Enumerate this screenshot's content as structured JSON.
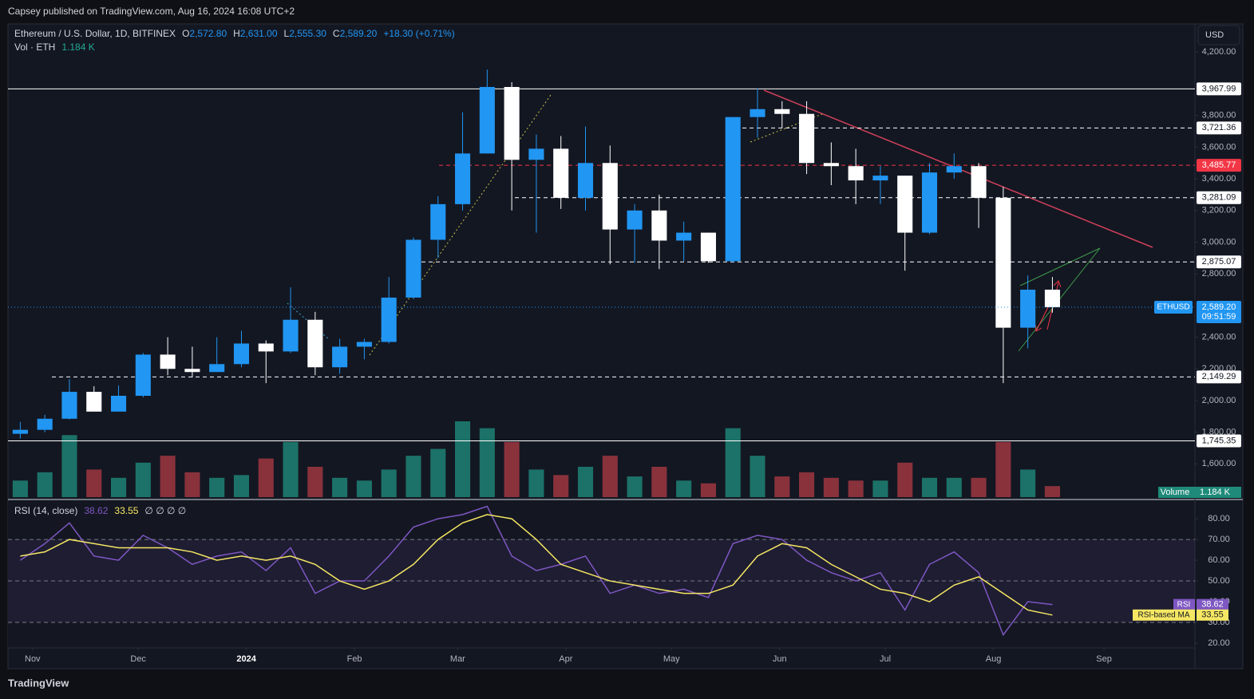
{
  "header": {
    "publisher": "Capsey published on TradingView.com, Aug 16, 2024 16:08 UTC+2",
    "currency": "USD",
    "footer": "TradingView"
  },
  "legend": {
    "symbol": "Ethereum / U.S. Dollar, 1D, BITFINEX",
    "ohlc": [
      {
        "key": "O",
        "value": "2,572.80"
      },
      {
        "key": "H",
        "value": "2,631.00"
      },
      {
        "key": "L",
        "value": "2,555.30"
      },
      {
        "key": "C",
        "value": "2,589.20"
      }
    ],
    "change": "+18.30 (+0.71%)",
    "volume_title": "Vol · ETH",
    "volume_value": "1.184 K"
  },
  "chart_data": {
    "type": "candlestick",
    "up_color": "#2196f3",
    "down_color": "#ffffff",
    "vol_up_color": "#1f8a7a",
    "vol_down_color": "#a83a44",
    "x": [
      0.5,
      1.5,
      2.5,
      3.5,
      4.5,
      5.5,
      6.5,
      7.5,
      8.5,
      9.5,
      10.5,
      11.5,
      12.5,
      13.5,
      14.5,
      15.5,
      16.5,
      17.5,
      18.5,
      19.5,
      20.5,
      21.5,
      22.5,
      23.5,
      24.5,
      25.5,
      26.5,
      27.5,
      28.5,
      29.5,
      30.5,
      31.5,
      32.5,
      33.5,
      34.5,
      35.5,
      36.5,
      37.5,
      38.5,
      39.5,
      40.5,
      41.5,
      42.5
    ],
    "open": [
      1790,
      1815,
      1885,
      2055,
      1930,
      2030,
      2290,
      2200,
      2180,
      2230,
      2360,
      2310,
      2510,
      2210,
      2340,
      2370,
      2650,
      3015,
      3240,
      3560,
      3980,
      3520,
      3590,
      3280,
      3500,
      3080,
      3200,
      3010,
      3060,
      2880,
      3790,
      3840,
      3810,
      3500,
      3480,
      3390,
      3420,
      3060,
      3440,
      3480,
      3280,
      2460,
      2700
    ],
    "high": [
      1865,
      1910,
      2135,
      2090,
      2095,
      2300,
      2400,
      2340,
      2400,
      2440,
      2380,
      2715,
      2560,
      2390,
      2390,
      2780,
      3030,
      3290,
      3820,
      4090,
      4010,
      3680,
      3670,
      3730,
      3610,
      3240,
      3300,
      3130,
      3060,
      3780,
      3970,
      3890,
      3890,
      3630,
      3590,
      3480,
      3420,
      3500,
      3560,
      3500,
      3350,
      2790,
      2780
    ],
    "low": [
      1760,
      1800,
      1880,
      1935,
      1930,
      2020,
      2160,
      2145,
      2180,
      2210,
      2110,
      2300,
      2160,
      2170,
      2260,
      2360,
      2640,
      2900,
      3200,
      3560,
      3200,
      3060,
      3210,
      3200,
      2860,
      2870,
      2830,
      2880,
      2870,
      2870,
      3660,
      3720,
      3430,
      3360,
      3240,
      3240,
      2820,
      3050,
      3400,
      3090,
      2110,
      2330,
      2555
    ],
    "close": [
      1815,
      1885,
      2055,
      1930,
      2030,
      2290,
      2200,
      2180,
      2230,
      2360,
      2310,
      2510,
      2210,
      2340,
      2370,
      2650,
      3015,
      3240,
      3560,
      3980,
      3520,
      3590,
      3280,
      3500,
      3080,
      3200,
      3010,
      3060,
      2880,
      3790,
      3840,
      3810,
      3500,
      3480,
      3390,
      3420,
      3060,
      3440,
      3480,
      3280,
      2460,
      2700,
      2589.2
    ],
    "volume": [
      12,
      18,
      45,
      20,
      14,
      25,
      30,
      18,
      14,
      16,
      28,
      40,
      22,
      14,
      12,
      20,
      30,
      35,
      55,
      50,
      40,
      20,
      16,
      22,
      30,
      15,
      22,
      12,
      10,
      50,
      30,
      15,
      18,
      14,
      12,
      12,
      25,
      14,
      14,
      14,
      40,
      20,
      8
    ],
    "xlim": [
      0,
      48.3
    ],
    "xticks": [
      {
        "value": 1,
        "label": "Nov"
      },
      {
        "value": 5.3,
        "label": "Dec"
      },
      {
        "value": 9.7,
        "label": "2024"
      },
      {
        "value": 14.1,
        "label": "Feb"
      },
      {
        "value": 18.3,
        "label": "Mar"
      },
      {
        "value": 22.7,
        "label": "Apr"
      },
      {
        "value": 27,
        "label": "May"
      },
      {
        "value": 31.4,
        "label": "Jun"
      },
      {
        "value": 35.7,
        "label": "Jul"
      },
      {
        "value": 40.1,
        "label": "Aug"
      },
      {
        "value": 44.6,
        "label": "Sep"
      }
    ],
    "ylim": [
      1380,
      4378
    ],
    "yticks": [
      {
        "value": 1600,
        "label": "1,600.00"
      },
      {
        "value": 1800,
        "label": "1,800.00"
      },
      {
        "value": 2000,
        "label": "2,000.00"
      },
      {
        "value": 2200,
        "label": "2,200.00"
      },
      {
        "value": 2400,
        "label": "2,400.00"
      },
      {
        "value": 2800,
        "label": "2,800.00"
      },
      {
        "value": 3000,
        "label": "3,000.00"
      },
      {
        "value": 3200,
        "label": "3,200.00"
      },
      {
        "value": 3400,
        "label": "3,400.00"
      },
      {
        "value": 3600,
        "label": "3,600.00"
      },
      {
        "value": 3800,
        "label": "3,800.00"
      },
      {
        "value": 4200,
        "label": "4,200.00"
      }
    ],
    "levels": [
      {
        "value": 3967.99,
        "label": "3,967.99",
        "color": "#ffffff",
        "dashed": false
      },
      {
        "value": 3721.36,
        "label": "3,721.36",
        "color": "#ffffff",
        "dashed": true
      },
      {
        "value": 3485.77,
        "label": "3,485.77",
        "color": "#f23645",
        "dashed": true
      },
      {
        "value": 3281.09,
        "label": "3,281.09",
        "color": "#ffffff",
        "dashed": true
      },
      {
        "value": 2875.07,
        "label": "2,875.07",
        "color": "#ffffff",
        "dashed": true
      },
      {
        "value": 2149.29,
        "label": "2,149.29",
        "color": "#ffffff",
        "dashed": true
      },
      {
        "value": 1745.35,
        "label": "1,745.35",
        "color": "#ffffff",
        "dashed": false
      }
    ],
    "last_price": {
      "value": 2589.2,
      "label": "2,589.20",
      "tag": "ETHUSD",
      "countdown": "09:51:59",
      "color": "#2196f3"
    },
    "volume_tag": {
      "label": "Volume",
      "value": "1.184 K"
    },
    "rsi": {
      "title": "RSI (14, close)",
      "placeholders": "∅ ∅ ∅ ∅",
      "series": [
        {
          "name": "RSI",
          "color": "#7e57c2",
          "values": [
            60,
            68,
            78,
            62,
            60,
            72,
            66,
            58,
            62,
            64,
            55,
            66,
            44,
            50,
            50,
            62,
            76,
            80,
            82,
            86,
            62,
            55,
            58,
            62,
            44,
            48,
            44,
            46,
            42,
            68,
            72,
            70,
            60,
            54,
            50,
            54,
            36,
            58,
            64,
            54,
            24,
            40,
            38.62
          ]
        },
        {
          "name": "RSI-based MA",
          "color": "#f5e663",
          "values": [
            62,
            64,
            70,
            68,
            66,
            66,
            66,
            64,
            60,
            62,
            60,
            62,
            58,
            50,
            46,
            50,
            58,
            70,
            78,
            82,
            80,
            70,
            58,
            54,
            50,
            48,
            46,
            44,
            44,
            48,
            62,
            68,
            66,
            58,
            52,
            46,
            44,
            40,
            48,
            52,
            44,
            36,
            33.55
          ]
        }
      ],
      "ylim": [
        17.7,
        88.5
      ],
      "yticks": [
        {
          "value": 20,
          "label": "20.00"
        },
        {
          "value": 30,
          "label": "30.00"
        },
        {
          "value": 40,
          "label": "40.00"
        },
        {
          "value": 50,
          "label": "50.00"
        },
        {
          "value": 60,
          "label": "60.00"
        },
        {
          "value": 70,
          "label": "70.00"
        },
        {
          "value": 80,
          "label": "80.00"
        }
      ],
      "levels": [
        70,
        50,
        30
      ]
    }
  }
}
